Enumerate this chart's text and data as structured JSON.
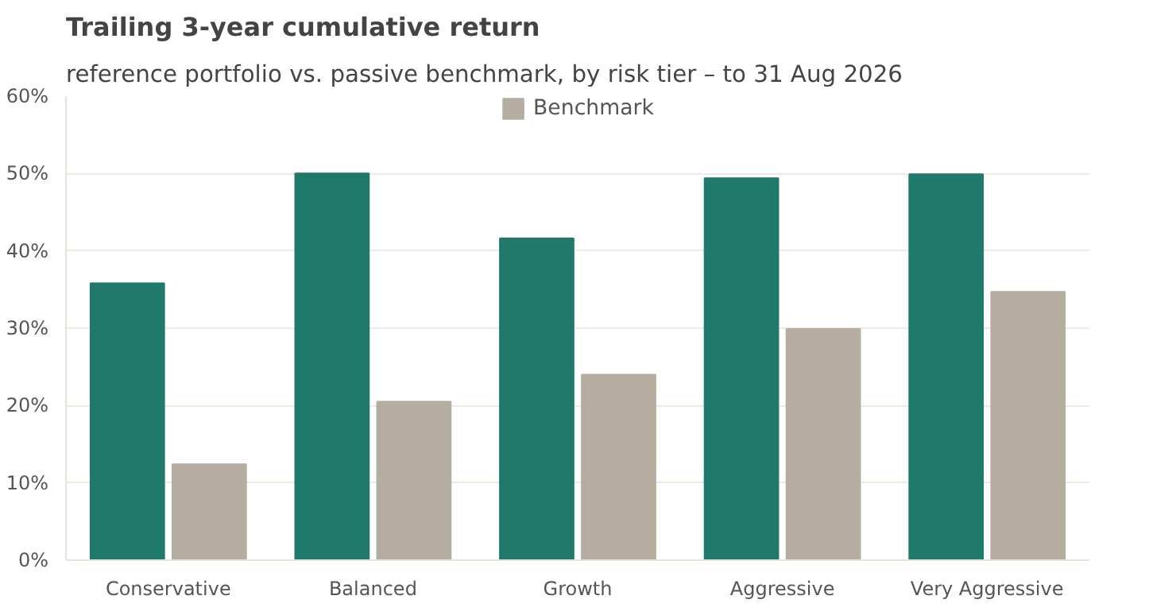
{
  "chart_data": {
    "type": "bar",
    "title": "Trailing 3-year cumulative return",
    "subtitle": "reference portfolio vs. passive benchmark, by risk tier – to 31 Aug 2026",
    "categories": [
      "Conservative",
      "Balanced",
      "Growth",
      "Aggressive",
      "Very Aggressive"
    ],
    "series": [
      {
        "color": "#1f7a6b",
        "values": [
          35.8,
          50.0,
          41.6,
          49.4,
          49.9
        ]
      },
      {
        "name": "Benchmark",
        "color": "#b6ada1",
        "values": [
          12.4,
          20.5,
          24.0,
          29.9,
          34.7
        ]
      }
    ],
    "ylim": [
      0,
      60
    ],
    "yticks": [
      {
        "value": 0,
        "label": "0%"
      },
      {
        "value": 10,
        "label": "10%"
      },
      {
        "value": 20,
        "label": "20%"
      },
      {
        "value": 30,
        "label": "30%"
      },
      {
        "value": 40,
        "label": "40%"
      },
      {
        "value": 50,
        "label": "50%"
      },
      {
        "value": 60,
        "label": "60%"
      }
    ],
    "grid": "y",
    "legend": "top"
  }
}
